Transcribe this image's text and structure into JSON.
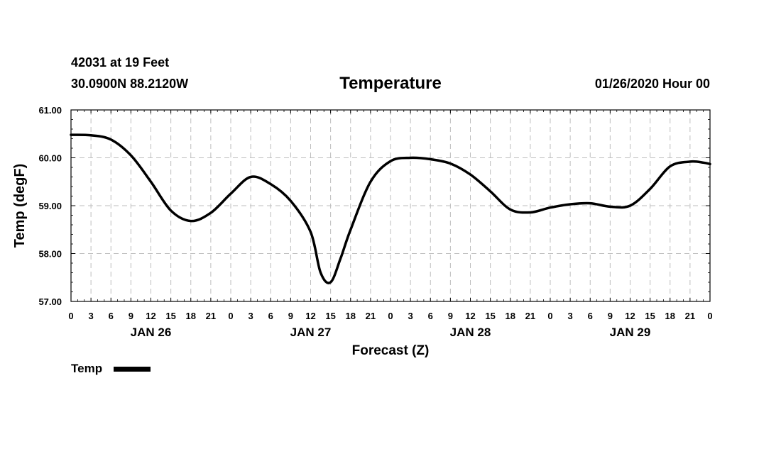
{
  "header": {
    "station_line": "42031 at 19 Feet",
    "location_line": "30.0900N 88.2120W",
    "run_time": "01/26/2020 Hour 00"
  },
  "legend": {
    "label": "Temp"
  },
  "chart_data": {
    "type": "line",
    "title": "Temperature",
    "xlabel": "Forecast (Z)",
    "ylabel": "Temp (degF)",
    "ylim": [
      57.0,
      61.0
    ],
    "y_ticks": [
      "57.00",
      "58.00",
      "59.00",
      "60.00",
      "61.00"
    ],
    "xlim": [
      0,
      96
    ],
    "x_tick_labels": [
      "0",
      "3",
      "6",
      "9",
      "12",
      "15",
      "18",
      "21",
      "0",
      "3",
      "6",
      "9",
      "12",
      "15",
      "18",
      "21",
      "0",
      "3",
      "6",
      "9",
      "12",
      "15",
      "18",
      "21",
      "0",
      "3",
      "6",
      "9",
      "12",
      "15",
      "18",
      "21",
      "0"
    ],
    "date_labels": [
      {
        "text": "JAN 26",
        "hour": 12
      },
      {
        "text": "JAN 27",
        "hour": 36
      },
      {
        "text": "JAN 28",
        "hour": 60
      },
      {
        "text": "JAN 29",
        "hour": 84
      }
    ],
    "grid": true,
    "legend_position": "bottom-left",
    "series": [
      {
        "name": "Temp",
        "color": "#000000",
        "x": [
          0,
          3,
          6,
          9,
          12,
          15,
          18,
          21,
          24,
          27,
          30,
          33,
          36,
          37.5,
          39,
          40.5,
          42,
          45,
          48,
          51,
          54,
          57,
          60,
          63,
          66,
          69,
          72,
          75,
          78,
          81,
          84,
          87,
          90,
          93,
          95,
          96
        ],
        "values": [
          60.48,
          60.47,
          60.38,
          60.05,
          59.5,
          58.9,
          58.68,
          58.85,
          59.25,
          59.6,
          59.45,
          59.1,
          58.45,
          57.6,
          57.4,
          57.9,
          58.5,
          59.5,
          59.93,
          60.0,
          59.97,
          59.88,
          59.65,
          59.3,
          58.92,
          58.86,
          58.96,
          59.03,
          59.05,
          58.98,
          59.0,
          59.35,
          59.82,
          59.92,
          59.9,
          59.87
        ]
      }
    ]
  }
}
